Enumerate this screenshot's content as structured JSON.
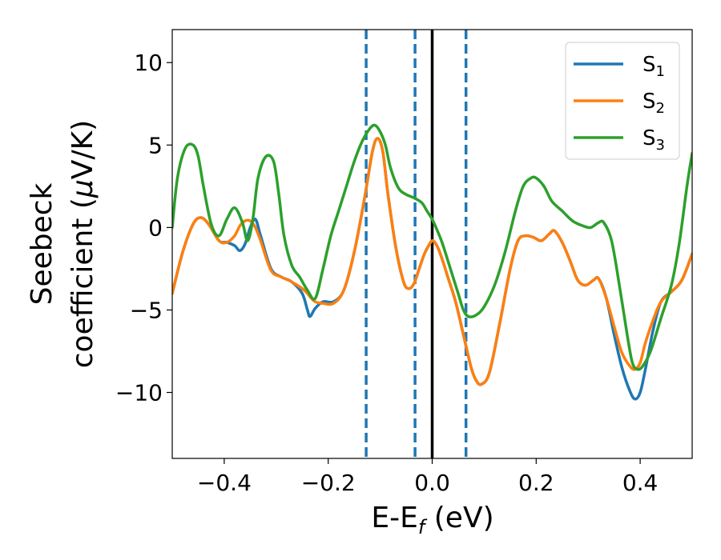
{
  "chart_data": {
    "type": "line",
    "xlabel": {
      "main": "E-E",
      "sub": "f",
      "suffix": " (eV)"
    },
    "ylabel": {
      "line1": "Seebeck",
      "line2_main": "coefficient  (",
      "line2_mu": "μ",
      "line2_suffix": "V/K)"
    },
    "xlim": [
      -0.5,
      0.5
    ],
    "ylim": [
      -14,
      12
    ],
    "xticks": [
      -0.4,
      -0.2,
      0.0,
      0.2,
      0.4
    ],
    "xtick_labels": [
      "−0.4",
      "−0.2",
      "0.0",
      "0.2",
      "0.4"
    ],
    "yticks": [
      -10,
      -5,
      0,
      5,
      10
    ],
    "ytick_labels": [
      "−10",
      "−5",
      "0",
      "5",
      "10"
    ],
    "grid": false,
    "legend": "top-right",
    "vlines": [
      {
        "x": 0.0,
        "color": "#000000",
        "style": "solid"
      },
      {
        "x": -0.127,
        "color": "#1f77b4",
        "style": "dashed"
      },
      {
        "x": -0.033,
        "color": "#1f77b4",
        "style": "dashed"
      },
      {
        "x": 0.065,
        "color": "#1f77b4",
        "style": "dashed"
      }
    ],
    "series": [
      {
        "name": "S",
        "sub": "1",
        "color": "#1f77b4",
        "x": [
          -0.5,
          -0.48,
          -0.46,
          -0.445,
          -0.43,
          -0.41,
          -0.395,
          -0.38,
          -0.37,
          -0.36,
          -0.35,
          -0.34,
          -0.33,
          -0.31,
          -0.29,
          -0.27,
          -0.25,
          -0.24,
          -0.235,
          -0.225,
          -0.21,
          -0.19,
          -0.17,
          -0.15,
          -0.13,
          -0.115,
          -0.105,
          -0.095,
          -0.085,
          -0.07,
          -0.055,
          -0.045,
          -0.035,
          -0.025,
          -0.015,
          -0.005,
          0.0,
          0.005,
          0.012,
          0.02,
          0.03,
          0.045,
          0.06,
          0.075,
          0.085,
          0.095,
          0.11,
          0.13,
          0.15,
          0.165,
          0.18,
          0.195,
          0.21,
          0.225,
          0.235,
          0.25,
          0.265,
          0.28,
          0.295,
          0.31,
          0.32,
          0.335,
          0.35,
          0.365,
          0.38,
          0.39,
          0.4,
          0.41,
          0.425,
          0.44,
          0.46,
          0.48,
          0.5
        ],
        "y": [
          -4.0,
          -1.5,
          0.2,
          0.6,
          0.2,
          -0.8,
          -0.9,
          -1.1,
          -1.4,
          -1.0,
          0.0,
          0.5,
          -0.5,
          -2.5,
          -3.0,
          -3.3,
          -4.0,
          -5.0,
          -5.4,
          -4.9,
          -4.5,
          -4.5,
          -3.8,
          -1.5,
          1.8,
          4.6,
          5.4,
          4.6,
          2.0,
          -1.2,
          -3.3,
          -3.7,
          -3.4,
          -2.5,
          -1.6,
          -1.0,
          -0.8,
          -0.9,
          -1.3,
          -2.0,
          -3.0,
          -4.5,
          -6.5,
          -8.5,
          -9.3,
          -9.5,
          -8.8,
          -5.8,
          -2.5,
          -0.8,
          -0.5,
          -0.6,
          -0.8,
          -0.4,
          -0.2,
          -0.9,
          -2.0,
          -3.2,
          -3.5,
          -3.2,
          -3.1,
          -4.3,
          -6.5,
          -8.5,
          -9.9,
          -10.4,
          -10.0,
          -8.6,
          -6.2,
          -4.5,
          -3.9,
          -3.2,
          -1.6
        ]
      },
      {
        "name": "S",
        "sub": "2",
        "color": "#ff7f0e",
        "x": [
          -0.5,
          -0.48,
          -0.46,
          -0.445,
          -0.43,
          -0.41,
          -0.395,
          -0.38,
          -0.37,
          -0.36,
          -0.35,
          -0.34,
          -0.33,
          -0.31,
          -0.29,
          -0.27,
          -0.25,
          -0.24,
          -0.235,
          -0.225,
          -0.21,
          -0.19,
          -0.17,
          -0.15,
          -0.13,
          -0.115,
          -0.105,
          -0.095,
          -0.085,
          -0.07,
          -0.055,
          -0.045,
          -0.035,
          -0.025,
          -0.015,
          -0.005,
          0.0,
          0.005,
          0.012,
          0.02,
          0.03,
          0.045,
          0.06,
          0.075,
          0.085,
          0.095,
          0.11,
          0.13,
          0.15,
          0.165,
          0.18,
          0.195,
          0.21,
          0.225,
          0.235,
          0.25,
          0.265,
          0.28,
          0.295,
          0.31,
          0.32,
          0.335,
          0.35,
          0.365,
          0.38,
          0.39,
          0.4,
          0.41,
          0.425,
          0.44,
          0.46,
          0.48,
          0.5
        ],
        "y": [
          -4.0,
          -1.5,
          0.2,
          0.6,
          0.2,
          -0.8,
          -0.9,
          -0.5,
          0.1,
          0.4,
          0.4,
          0.0,
          -0.8,
          -2.6,
          -3.0,
          -3.3,
          -3.7,
          -4.0,
          -4.2,
          -4.5,
          -4.6,
          -4.6,
          -3.8,
          -1.5,
          1.8,
          4.6,
          5.4,
          4.6,
          2.0,
          -1.2,
          -3.3,
          -3.7,
          -3.4,
          -2.5,
          -1.6,
          -1.0,
          -0.8,
          -0.9,
          -1.3,
          -2.0,
          -3.0,
          -4.5,
          -6.5,
          -8.5,
          -9.3,
          -9.5,
          -8.8,
          -5.8,
          -2.5,
          -0.8,
          -0.5,
          -0.6,
          -0.8,
          -0.4,
          -0.2,
          -0.9,
          -2.0,
          -3.2,
          -3.5,
          -3.2,
          -3.1,
          -4.3,
          -6.0,
          -7.6,
          -8.4,
          -8.6,
          -8.2,
          -7.0,
          -5.6,
          -4.5,
          -3.9,
          -3.2,
          -1.6
        ]
      },
      {
        "name": "S",
        "sub": "3",
        "color": "#2ca02c",
        "x": [
          -0.5,
          -0.49,
          -0.475,
          -0.46,
          -0.45,
          -0.44,
          -0.425,
          -0.41,
          -0.395,
          -0.38,
          -0.365,
          -0.355,
          -0.345,
          -0.335,
          -0.32,
          -0.305,
          -0.295,
          -0.285,
          -0.27,
          -0.255,
          -0.24,
          -0.225,
          -0.21,
          -0.195,
          -0.18,
          -0.165,
          -0.15,
          -0.135,
          -0.12,
          -0.11,
          -0.1,
          -0.09,
          -0.08,
          -0.065,
          -0.05,
          -0.035,
          -0.02,
          -0.01,
          0.0,
          0.01,
          0.02,
          0.035,
          0.05,
          0.06,
          0.07,
          0.085,
          0.1,
          0.12,
          0.14,
          0.16,
          0.175,
          0.19,
          0.2,
          0.215,
          0.23,
          0.25,
          0.27,
          0.29,
          0.305,
          0.32,
          0.33,
          0.345,
          0.36,
          0.375,
          0.385,
          0.395,
          0.405,
          0.42,
          0.44,
          0.46,
          0.475,
          0.49,
          0.5
        ],
        "y": [
          0.0,
          3.0,
          4.8,
          5.0,
          4.3,
          2.5,
          0.2,
          -0.5,
          0.5,
          1.2,
          0.3,
          -0.8,
          0.5,
          3.0,
          4.3,
          4.0,
          2.0,
          -0.5,
          -2.3,
          -3.0,
          -3.8,
          -4.3,
          -2.5,
          -0.5,
          1.0,
          2.5,
          4.0,
          5.2,
          6.0,
          6.2,
          5.8,
          5.0,
          3.6,
          2.4,
          2.0,
          1.8,
          1.5,
          1.0,
          0.5,
          -0.2,
          -1.0,
          -2.5,
          -4.0,
          -5.0,
          -5.4,
          -5.3,
          -4.8,
          -3.5,
          -1.5,
          1.0,
          2.5,
          3.0,
          3.0,
          2.5,
          1.6,
          1.0,
          0.4,
          0.1,
          0.0,
          0.3,
          0.3,
          -0.8,
          -3.5,
          -6.5,
          -8.2,
          -8.6,
          -8.4,
          -7.5,
          -5.5,
          -3.5,
          -1.0,
          2.5,
          4.5
        ]
      }
    ]
  }
}
